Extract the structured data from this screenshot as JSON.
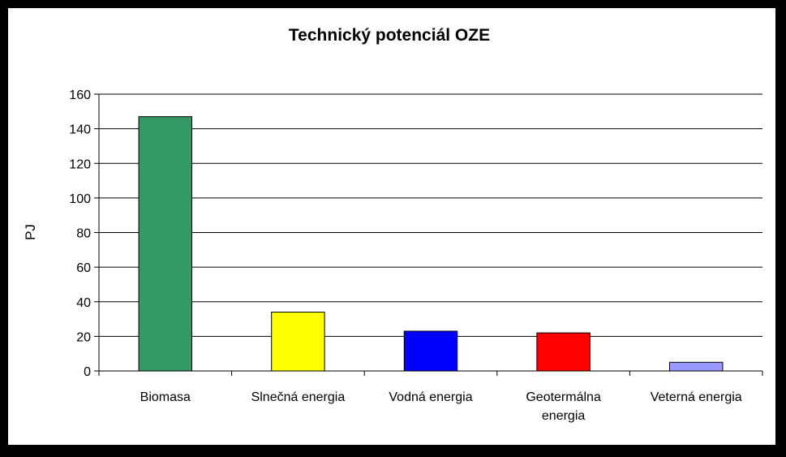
{
  "chart_data": {
    "type": "bar",
    "title": "Technický potenciál OZE",
    "ylabel": "PJ",
    "xlabel": "",
    "ylim": [
      0,
      160
    ],
    "yticks": [
      0,
      20,
      40,
      60,
      80,
      100,
      120,
      140,
      160
    ],
    "grid": true,
    "legend": "none",
    "categories": [
      [
        "Biomasa"
      ],
      [
        "Slnečná energia"
      ],
      [
        "Vodná energia"
      ],
      [
        "Geotermálna",
        "energia"
      ],
      [
        "Veterná energia"
      ]
    ],
    "values": [
      147,
      34,
      23,
      22,
      5
    ],
    "colors": [
      "#339966",
      "#ffff00",
      "#0000ff",
      "#ff0000",
      "#9999ff"
    ]
  }
}
